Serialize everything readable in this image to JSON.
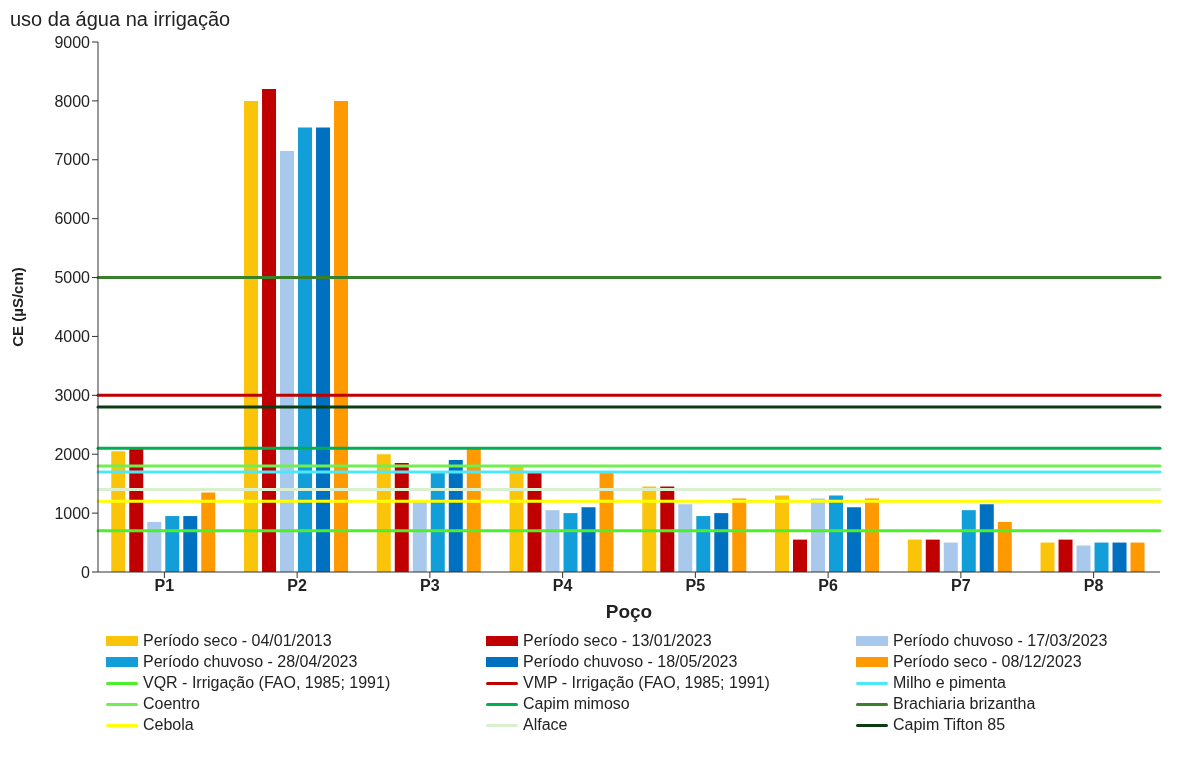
{
  "chart_data": {
    "type": "bar",
    "title": "uso da água na irrigação",
    "xlabel": "Poço",
    "ylabel": "CE (µS/cm)",
    "categories": [
      "P1",
      "P2",
      "P3",
      "P4",
      "P5",
      "P6",
      "P7",
      "P8"
    ],
    "series": [
      {
        "name": "Período seco - 04/01/2013",
        "color": "#fac40a",
        "values": [
          2050,
          8000,
          2000,
          1800,
          1450,
          1300,
          550,
          500
        ]
      },
      {
        "name": "Período seco - 13/01/2023",
        "color": "#c00000",
        "values": [
          2100,
          8200,
          1850,
          1700,
          1450,
          550,
          550,
          550
        ]
      },
      {
        "name": "Período chuvoso - 17/03/2023",
        "color": "#a8c9ec",
        "values": [
          850,
          7150,
          1200,
          1050,
          1150,
          1250,
          500,
          450
        ]
      },
      {
        "name": "Período chuvoso - 28/04/2023",
        "color": "#129ed8",
        "values": [
          950,
          7550,
          1700,
          1000,
          950,
          1300,
          1050,
          500
        ]
      },
      {
        "name": "Período chuvoso - 18/05/2023",
        "color": "#0070c0",
        "values": [
          950,
          7550,
          1900,
          1100,
          1000,
          1100,
          1150,
          500
        ]
      },
      {
        "name": "Período seco - 08/12/2023",
        "color": "#ff9900",
        "values": [
          1350,
          8000,
          2100,
          1700,
          1250,
          1250,
          850,
          500
        ]
      }
    ],
    "ref_lines": [
      {
        "axis": "y",
        "value": 700,
        "label": "VQR - Irrigação (FAO, 1985; 1991)",
        "color": "#4cf02a"
      },
      {
        "axis": "y",
        "value": 3000,
        "label": "VMP - Irrigação (FAO, 1985; 1991)",
        "color": "#c00000"
      },
      {
        "axis": "y",
        "value": 1700,
        "label": "Milho e pimenta",
        "color": "#4de8f8"
      },
      {
        "axis": "y",
        "value": 1800,
        "label": "Coentro",
        "color": "#70f050"
      },
      {
        "axis": "y",
        "value": 2100,
        "label": "Capim mimoso",
        "color": "#00b050"
      },
      {
        "axis": "y",
        "value": 5000,
        "label": "Brachiaria brizantha",
        "color": "#38802a"
      },
      {
        "axis": "y",
        "value": 1200,
        "label": "Cebola",
        "color": "#ffff00"
      },
      {
        "axis": "y",
        "value": 1400,
        "label": "Alface",
        "color": "#d8f0d0"
      },
      {
        "axis": "y",
        "value": 2800,
        "label": "Capim Tifton 85",
        "color": "#0a3d14"
      }
    ],
    "ylim": [
      0,
      9000
    ],
    "yticks": [
      0,
      1000,
      2000,
      3000,
      4000,
      5000,
      6000,
      7000,
      8000,
      9000
    ],
    "grid": false,
    "legend": "bottom"
  }
}
